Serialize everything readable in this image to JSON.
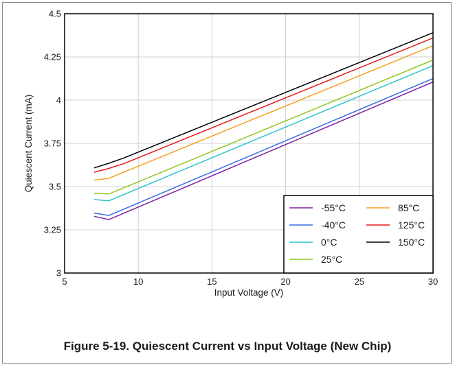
{
  "caption": "Figure 5-19. Quiescent Current vs Input Voltage (New Chip)",
  "chart_data": {
    "type": "line",
    "title": "",
    "xlabel": "Input Voltage (V)",
    "ylabel": "Quiescent Current (mA)",
    "xlim": [
      5,
      30
    ],
    "ylim": [
      3,
      4.5
    ],
    "xticks": [
      5,
      10,
      15,
      20,
      25,
      30
    ],
    "yticks": [
      3,
      3.25,
      3.5,
      3.75,
      4,
      4.25,
      4.5
    ],
    "ytick_labels": [
      "3",
      "3.25",
      "3.5",
      "3.75",
      "4",
      "4.25",
      "4.5"
    ],
    "grid": true,
    "legend_position": "bottom-right",
    "series": [
      {
        "name": "-55°C",
        "color": "#7b1fa2",
        "x": [
          7,
          8,
          30
        ],
        "y": [
          3.328,
          3.309,
          4.105
        ]
      },
      {
        "name": "-40°C",
        "color": "#3a6fe0",
        "x": [
          7,
          8,
          30
        ],
        "y": [
          3.347,
          3.333,
          4.125
        ]
      },
      {
        "name": "0°C",
        "color": "#2ec4c8",
        "x": [
          7,
          8,
          30
        ],
        "y": [
          3.425,
          3.418,
          4.2
        ]
      },
      {
        "name": "25°C",
        "color": "#8cc820",
        "x": [
          7,
          8,
          30
        ],
        "y": [
          3.462,
          3.457,
          4.232
        ]
      },
      {
        "name": "85°C",
        "color": "#f4a020",
        "x": [
          7,
          8,
          30
        ],
        "y": [
          3.537,
          3.548,
          4.315
        ]
      },
      {
        "name": "125°C",
        "color": "#e81818",
        "x": [
          7,
          8,
          9,
          30
        ],
        "y": [
          3.583,
          3.605,
          3.632,
          4.36
        ]
      },
      {
        "name": "150°C",
        "color": "#000000",
        "x": [
          7,
          8,
          9,
          30
        ],
        "y": [
          3.608,
          3.635,
          3.665,
          4.39
        ]
      }
    ]
  }
}
